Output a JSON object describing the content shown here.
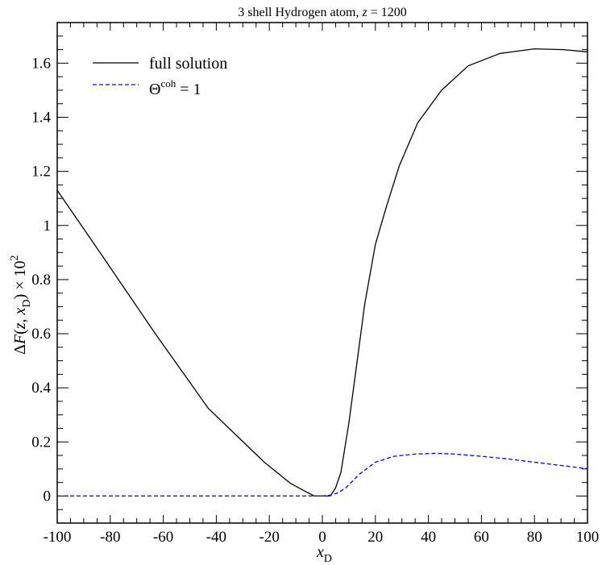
{
  "chart_data": {
    "type": "line",
    "title": "3 shell Hydrogen atom, z = 1200",
    "title_parts": {
      "prefix": "3 shell Hydrogen atom, ",
      "var": "z",
      "suffix": " = 1200"
    },
    "xlabel": "x_D",
    "xlabel_parts": {
      "main": "x",
      "sub": "D"
    },
    "ylabel": "ΔF(z, x_D) × 10^2",
    "ylabel_parts": {
      "a": "Δ",
      "b": "F",
      "c": "(",
      "d": "z",
      "e": ", ",
      "f": "x",
      "g": "D",
      "h": ") × 10",
      "i": "2"
    },
    "xlim": [
      -100,
      100
    ],
    "ylim": [
      -0.1,
      1.75
    ],
    "xticks": [
      "-100",
      "-80",
      "-60",
      "-40",
      "-20",
      "0",
      "20",
      "40",
      "60",
      "80",
      "100"
    ],
    "yticks": [
      "0",
      "0.2",
      "0.4",
      "0.6",
      "0.8",
      "1",
      "1.2",
      "1.4",
      "1.6"
    ],
    "grid": false,
    "legend_position": "top-left",
    "series": [
      {
        "name": "full solution",
        "color": "#000000",
        "dash": "solid",
        "x": [
          -100,
          -83,
          -63,
          -43,
          -22,
          -12,
          -6,
          -3,
          0,
          3,
          5,
          7,
          10,
          13,
          16,
          20,
          24,
          29,
          36,
          45,
          55,
          67,
          80,
          91,
          100
        ],
        "y": [
          1.13,
          0.888,
          0.6,
          0.324,
          0.126,
          0.047,
          0.015,
          0.0,
          0.0,
          0.0,
          0.03,
          0.087,
          0.27,
          0.49,
          0.71,
          0.93,
          1.065,
          1.22,
          1.38,
          1.5,
          1.59,
          1.636,
          1.653,
          1.65,
          1.642
        ]
      },
      {
        "name": "Θ^coh = 1",
        "label_parts": {
          "a": "Θ",
          "b": "coh",
          "c": " = 1"
        },
        "color": "#0000ff",
        "dash": "dashed",
        "x": [
          -100,
          -50,
          0,
          3,
          6,
          9,
          14,
          20,
          27,
          35,
          43,
          50,
          60,
          70,
          80,
          90,
          100
        ],
        "y": [
          0,
          0,
          0,
          0.003,
          0.012,
          0.032,
          0.081,
          0.125,
          0.147,
          0.155,
          0.158,
          0.155,
          0.147,
          0.137,
          0.125,
          0.113,
          0.101
        ]
      }
    ]
  }
}
